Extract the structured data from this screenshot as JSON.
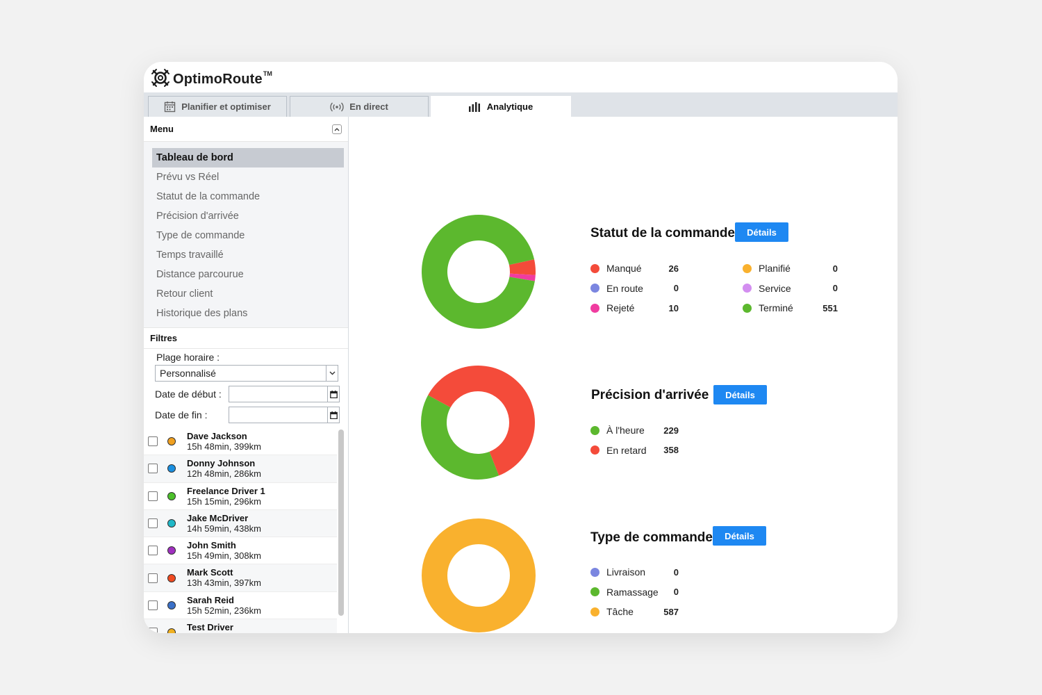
{
  "app": {
    "logo_text": "OptimoRoute",
    "logo_tm": "TM"
  },
  "tabs": [
    {
      "label": "Planifier et optimiser",
      "icon": "calendar-icon"
    },
    {
      "label": "En direct",
      "icon": "broadcast-icon"
    },
    {
      "label": "Analytique",
      "icon": "bar-chart-icon"
    }
  ],
  "sidebar": {
    "menu_title": "Menu",
    "menu_items": [
      "Tableau de bord",
      "Prévu vs Réel",
      "Statut de la commande",
      "Précision d'arrivée",
      "Type de commande",
      "Temps travaillé",
      "Distance parcourue",
      "Retour client",
      "Historique des plans"
    ],
    "filters_title": "Filtres",
    "time_range_label": "Plage horaire :",
    "time_range_value": "Personnalisé",
    "start_date_label": "Date de début :",
    "end_date_label": "Date de fin :",
    "drivers": [
      {
        "name": "Dave Jackson",
        "details": "15h 48min, 399km",
        "color": "#f0a020"
      },
      {
        "name": "Donny Johnson",
        "details": "12h 48min, 286km",
        "color": "#1a8fe0"
      },
      {
        "name": "Freelance Driver 1",
        "details": "15h 15min, 296km",
        "color": "#4cc02a"
      },
      {
        "name": "Jake McDriver",
        "details": "14h 59min, 438km",
        "color": "#20b8c8"
      },
      {
        "name": "John Smith",
        "details": "15h 49min, 308km",
        "color": "#a030c0"
      },
      {
        "name": "Mark Scott",
        "details": "13h 43min, 397km",
        "color": "#f04a20"
      },
      {
        "name": "Sarah Reid",
        "details": "15h 52min, 236km",
        "color": "#3a70c8"
      },
      {
        "name": "Test Driver",
        "details": "",
        "color": "#f0b020"
      }
    ]
  },
  "details_label": "Détails",
  "chart_data": [
    {
      "type": "pie",
      "title": "Statut de la commande",
      "series": [
        {
          "name": "Manqué",
          "value": 26,
          "color": "#f44b3a"
        },
        {
          "name": "En route",
          "value": 0,
          "color": "#7b86e0"
        },
        {
          "name": "Rejeté",
          "value": 10,
          "color": "#f03ca0"
        },
        {
          "name": "Planifié",
          "value": 0,
          "color": "#f9b12e"
        },
        {
          "name": "Service",
          "value": 0,
          "color": "#d38ef0"
        },
        {
          "name": "Terminé",
          "value": 551,
          "color": "#5cb82e"
        }
      ]
    },
    {
      "type": "pie",
      "title": "Précision d'arrivée",
      "series": [
        {
          "name": "À l'heure",
          "value": 229,
          "color": "#5cb82e"
        },
        {
          "name": "En retard",
          "value": 358,
          "color": "#f44b3a"
        }
      ]
    },
    {
      "type": "pie",
      "title": "Type de commande",
      "series": [
        {
          "name": "Livraison",
          "value": 0,
          "color": "#7b86e0"
        },
        {
          "name": "Ramassage",
          "value": 0,
          "color": "#5cb82e"
        },
        {
          "name": "Tâche",
          "value": 587,
          "color": "#f9b12e"
        }
      ]
    }
  ]
}
